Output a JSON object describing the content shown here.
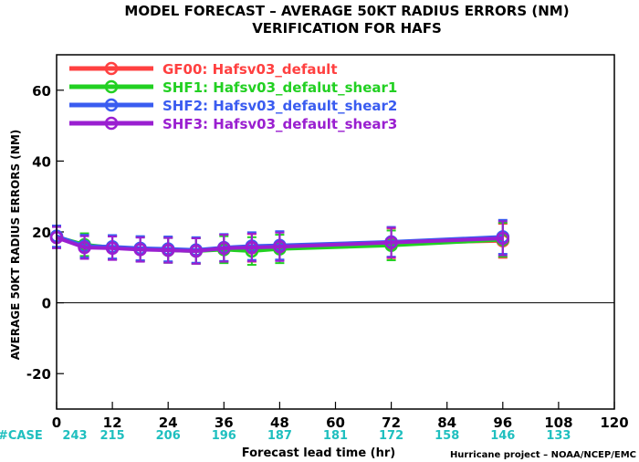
{
  "chart_data": {
    "type": "line",
    "title": "MODEL FORECAST – AVERAGE 50KT RADIUS ERRORS (NM)",
    "subtitle": "VERIFICATION FOR HAFS",
    "xlabel": "Forecast lead time (hr)",
    "ylabel": "AVERAGE 50KT RADIUS ERRORS (NM)",
    "xlim": [
      0,
      120
    ],
    "ylim": [
      -30,
      70
    ],
    "x_ticks": [
      0,
      12,
      24,
      36,
      48,
      60,
      72,
      84,
      96,
      108,
      120
    ],
    "y_ticks": [
      -20,
      0,
      20,
      40,
      60
    ],
    "zero_line": true,
    "legend_position": "top-left",
    "case_label": "#CASE",
    "case_x": [
      0,
      12,
      24,
      36,
      48,
      60,
      72,
      84,
      96,
      108
    ],
    "case_counts": [
      "243",
      "215",
      "206",
      "196",
      "187",
      "181",
      "172",
      "158",
      "146",
      "133"
    ],
    "credit": "Hurricane project – NOAA/NCEP/EMC",
    "series": [
      {
        "name": "GF00: Hafsv03_default",
        "color": "#ff4040",
        "x": [
          0,
          6,
          12,
          18,
          24,
          30,
          36,
          42,
          48,
          72,
          96
        ],
        "y": [
          18.5,
          16.0,
          15.5,
          15.2,
          15.0,
          14.8,
          15.5,
          15.5,
          16.0,
          16.8,
          17.5
        ],
        "err": [
          3.0,
          3.2,
          3.3,
          3.4,
          3.5,
          3.6,
          3.8,
          3.9,
          4.0,
          4.2,
          4.8
        ]
      },
      {
        "name": "SHF1: Hafsv03_defalut_shear1",
        "color": "#22d022",
        "x": [
          0,
          6,
          12,
          18,
          24,
          30,
          36,
          42,
          48,
          72,
          96
        ],
        "y": [
          18.6,
          16.4,
          15.6,
          15.2,
          14.8,
          14.6,
          15.0,
          14.6,
          15.2,
          16.2,
          17.8
        ],
        "err": [
          3.0,
          3.2,
          3.3,
          3.4,
          3.5,
          3.6,
          3.8,
          3.9,
          4.0,
          4.2,
          4.8
        ]
      },
      {
        "name": "SHF2: Hafsv03_default_shear2",
        "color": "#3a5cf0",
        "x": [
          0,
          6,
          12,
          18,
          24,
          30,
          36,
          42,
          48,
          72,
          96
        ],
        "y": [
          18.8,
          16.0,
          15.8,
          15.4,
          15.2,
          14.9,
          15.6,
          16.0,
          16.2,
          17.2,
          18.6
        ],
        "err": [
          3.0,
          3.2,
          3.3,
          3.4,
          3.5,
          3.6,
          3.8,
          3.9,
          4.0,
          4.2,
          4.8
        ]
      },
      {
        "name": "SHF3: Hafsv03_default_shear3",
        "color": "#9a1fd0",
        "x": [
          0,
          6,
          12,
          18,
          24,
          30,
          36,
          42,
          48,
          72,
          96
        ],
        "y": [
          18.4,
          15.6,
          15.4,
          15.0,
          14.8,
          14.6,
          15.4,
          15.6,
          15.8,
          17.0,
          18.2
        ],
        "err": [
          3.0,
          3.2,
          3.3,
          3.4,
          3.5,
          3.6,
          3.8,
          3.9,
          4.0,
          4.2,
          4.8
        ]
      }
    ]
  }
}
